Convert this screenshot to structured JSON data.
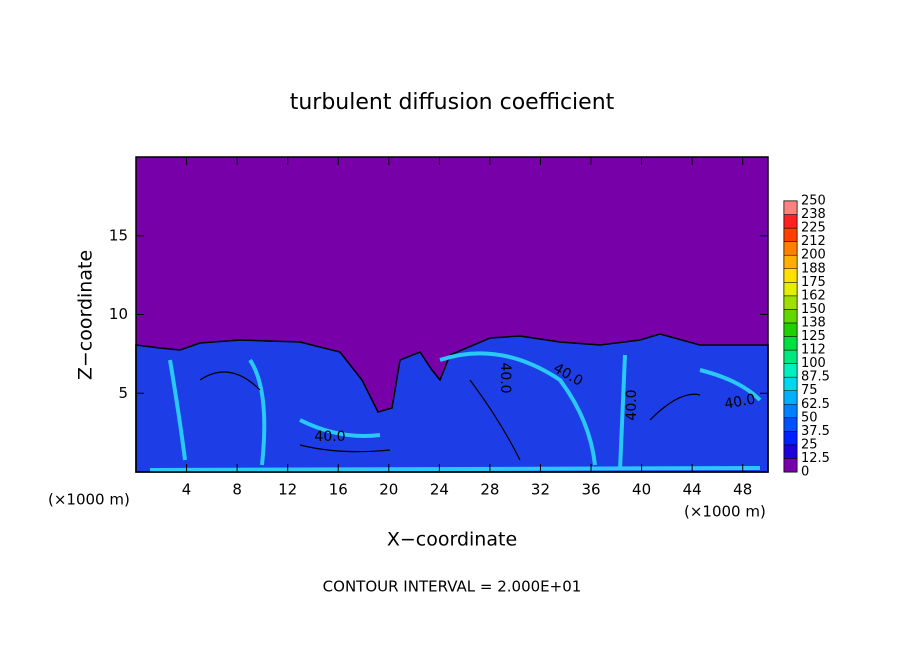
{
  "chart_data": {
    "type": "contour",
    "title": "turbulent diffusion coefficient",
    "x_label": "X−coordinate",
    "y_label": "Z−coordinate",
    "x_unit": "(×1000 m)",
    "x_unit_right": "(×1000 m)",
    "footer": "CONTOUR INTERVAL = 2.000E+01",
    "xlim": [
      0,
      50
    ],
    "xticks": [
      4,
      8,
      12,
      16,
      20,
      24,
      28,
      32,
      36,
      40,
      44,
      48
    ],
    "ylim": [
      0,
      20
    ],
    "yticks": [
      5,
      10,
      15
    ],
    "contour_labels": [
      "40.0",
      "40.0",
      "40.0",
      "40.0",
      "40.0"
    ],
    "colorbar": {
      "levels": [
        0,
        12.5,
        25,
        37.5,
        50,
        62.5,
        75,
        87.5,
        100,
        {
          "value": 112.5,
          "label": "112"
        },
        125,
        {
          "value": 137.5,
          "label": "138"
        },
        150,
        {
          "value": 162.5,
          "label": "162"
        },
        175,
        {
          "value": 187.5,
          "label": "188"
        },
        200,
        {
          "value": 212.5,
          "label": "212"
        },
        225,
        {
          "value": 237.5,
          "label": "238"
        },
        250
      ],
      "colors": [
        "#7800a8",
        "#2000d8",
        "#0020ff",
        "#0050ff",
        "#0080ff",
        "#00b0ff",
        "#00d8f0",
        "#00f0c0",
        "#00e880",
        "#00e040",
        "#20d000",
        "#60d800",
        "#a0e000",
        "#e0f000",
        "#ffe000",
        "#ffb000",
        "#ff8000",
        "#ff4000",
        "#ff2020",
        "#ff8080"
      ]
    }
  }
}
